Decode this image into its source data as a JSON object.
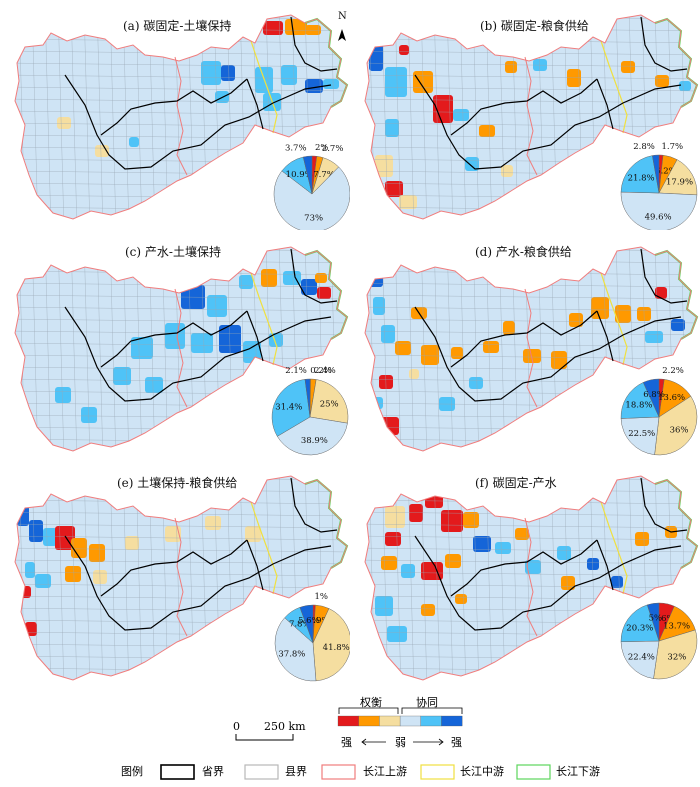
{
  "north_arrow": {
    "label": "N"
  },
  "panels": [
    {
      "title": "(a) 碳固定-土壤保持",
      "pie": {
        "slices": [
          {
            "value": 2,
            "label": "2%",
            "color": "#e31a1c"
          },
          {
            "value": 2.7,
            "label": "2.7%",
            "color": "#ff9900"
          },
          {
            "value": 7.7,
            "label": "7.7%",
            "color": "#f5dea0"
          },
          {
            "value": 73,
            "label": "73%",
            "color": "#cfe4f5"
          },
          {
            "value": 10.9,
            "label": "10.9%",
            "color": "#4fc3f7"
          },
          {
            "value": 3.7,
            "label": "3.7%",
            "color": "#1565d8"
          }
        ]
      }
    },
    {
      "title": "(b) 碳固定-粮食供给",
      "pie": {
        "slices": [
          {
            "value": 1.7,
            "label": "1.7%",
            "color": "#e31a1c"
          },
          {
            "value": 6.2,
            "label": "6.2%",
            "color": "#ff9900"
          },
          {
            "value": 17.9,
            "label": "17.9%",
            "color": "#f5dea0"
          },
          {
            "value": 49.6,
            "label": "49.6%",
            "color": "#cfe4f5"
          },
          {
            "value": 21.8,
            "label": "21.8%",
            "color": "#4fc3f7"
          },
          {
            "value": 2.8,
            "label": "2.8%",
            "color": "#1565d8"
          }
        ]
      }
    },
    {
      "title": "(c) 产水-土壤保持",
      "pie": {
        "slices": [
          {
            "value": 0.2,
            "label": "0.2%",
            "color": "#e31a1c"
          },
          {
            "value": 2.4,
            "label": "2.4%",
            "color": "#ff9900"
          },
          {
            "value": 25,
            "label": "25%",
            "color": "#f5dea0"
          },
          {
            "value": 38.9,
            "label": "38.9%",
            "color": "#cfe4f5"
          },
          {
            "value": 31.4,
            "label": "31.4%",
            "color": "#4fc3f7"
          },
          {
            "value": 2.1,
            "label": "2.1%",
            "color": "#1565d8"
          }
        ]
      }
    },
    {
      "title": "(d) 产水-粮食供给",
      "pie": {
        "slices": [
          {
            "value": 2.2,
            "label": "2.2%",
            "color": "#e31a1c"
          },
          {
            "value": 13.6,
            "label": "13.6%",
            "color": "#ff9900"
          },
          {
            "value": 36,
            "label": "36%",
            "color": "#f5dea0"
          },
          {
            "value": 22.5,
            "label": "22.5%",
            "color": "#cfe4f5"
          },
          {
            "value": 18.8,
            "label": "18.8%",
            "color": "#4fc3f7"
          },
          {
            "value": 6.8,
            "label": "6.8%",
            "color": "#1565d8"
          }
        ]
      }
    },
    {
      "title": "(e) 土壤保持-粮食供给",
      "pie": {
        "slices": [
          {
            "value": 1,
            "label": "1%",
            "color": "#e31a1c"
          },
          {
            "value": 5.9,
            "label": "5.9%",
            "color": "#ff9900"
          },
          {
            "value": 41.8,
            "label": "41.8%",
            "color": "#f5dea0"
          },
          {
            "value": 37.8,
            "label": "37.8%",
            "color": "#cfe4f5"
          },
          {
            "value": 7.8,
            "label": "7.8%",
            "color": "#4fc3f7"
          },
          {
            "value": 5.6,
            "label": "5.6%",
            "color": "#1565d8"
          }
        ]
      }
    },
    {
      "title": "(f) 碳固定-产水",
      "pie": {
        "slices": [
          {
            "value": 6.6,
            "label": "6.6%",
            "color": "#e31a1c"
          },
          {
            "value": 13.7,
            "label": "13.7%",
            "color": "#ff9900"
          },
          {
            "value": 32,
            "label": "32%",
            "color": "#f5dea0"
          },
          {
            "value": 22.4,
            "label": "22.4%",
            "color": "#cfe4f5"
          },
          {
            "value": 20.3,
            "label": "20.3%",
            "color": "#4fc3f7"
          },
          {
            "value": 5,
            "label": "5%",
            "color": "#1565d8"
          }
        ]
      }
    }
  ],
  "scale_bar": {
    "zero": "0",
    "label": "250 km"
  },
  "color_legend": {
    "tradeoff": "权衡",
    "synergy": "协同",
    "strong_left": "强",
    "weak": "弱",
    "strong_right": "强",
    "colors": [
      "#e31a1c",
      "#ff9900",
      "#f5dea0",
      "#cfe4f5",
      "#4fc3f7",
      "#1565d8"
    ]
  },
  "legend": {
    "title": "图例",
    "items": [
      {
        "label": "省界",
        "color": "#000000"
      },
      {
        "label": "县界",
        "color": "#b8b8b8"
      },
      {
        "label": "长江上游",
        "color": "#f07d7d"
      },
      {
        "label": "长江中游",
        "color": "#f0e040"
      },
      {
        "label": "长江下游",
        "color": "#5cd65c"
      }
    ]
  }
}
